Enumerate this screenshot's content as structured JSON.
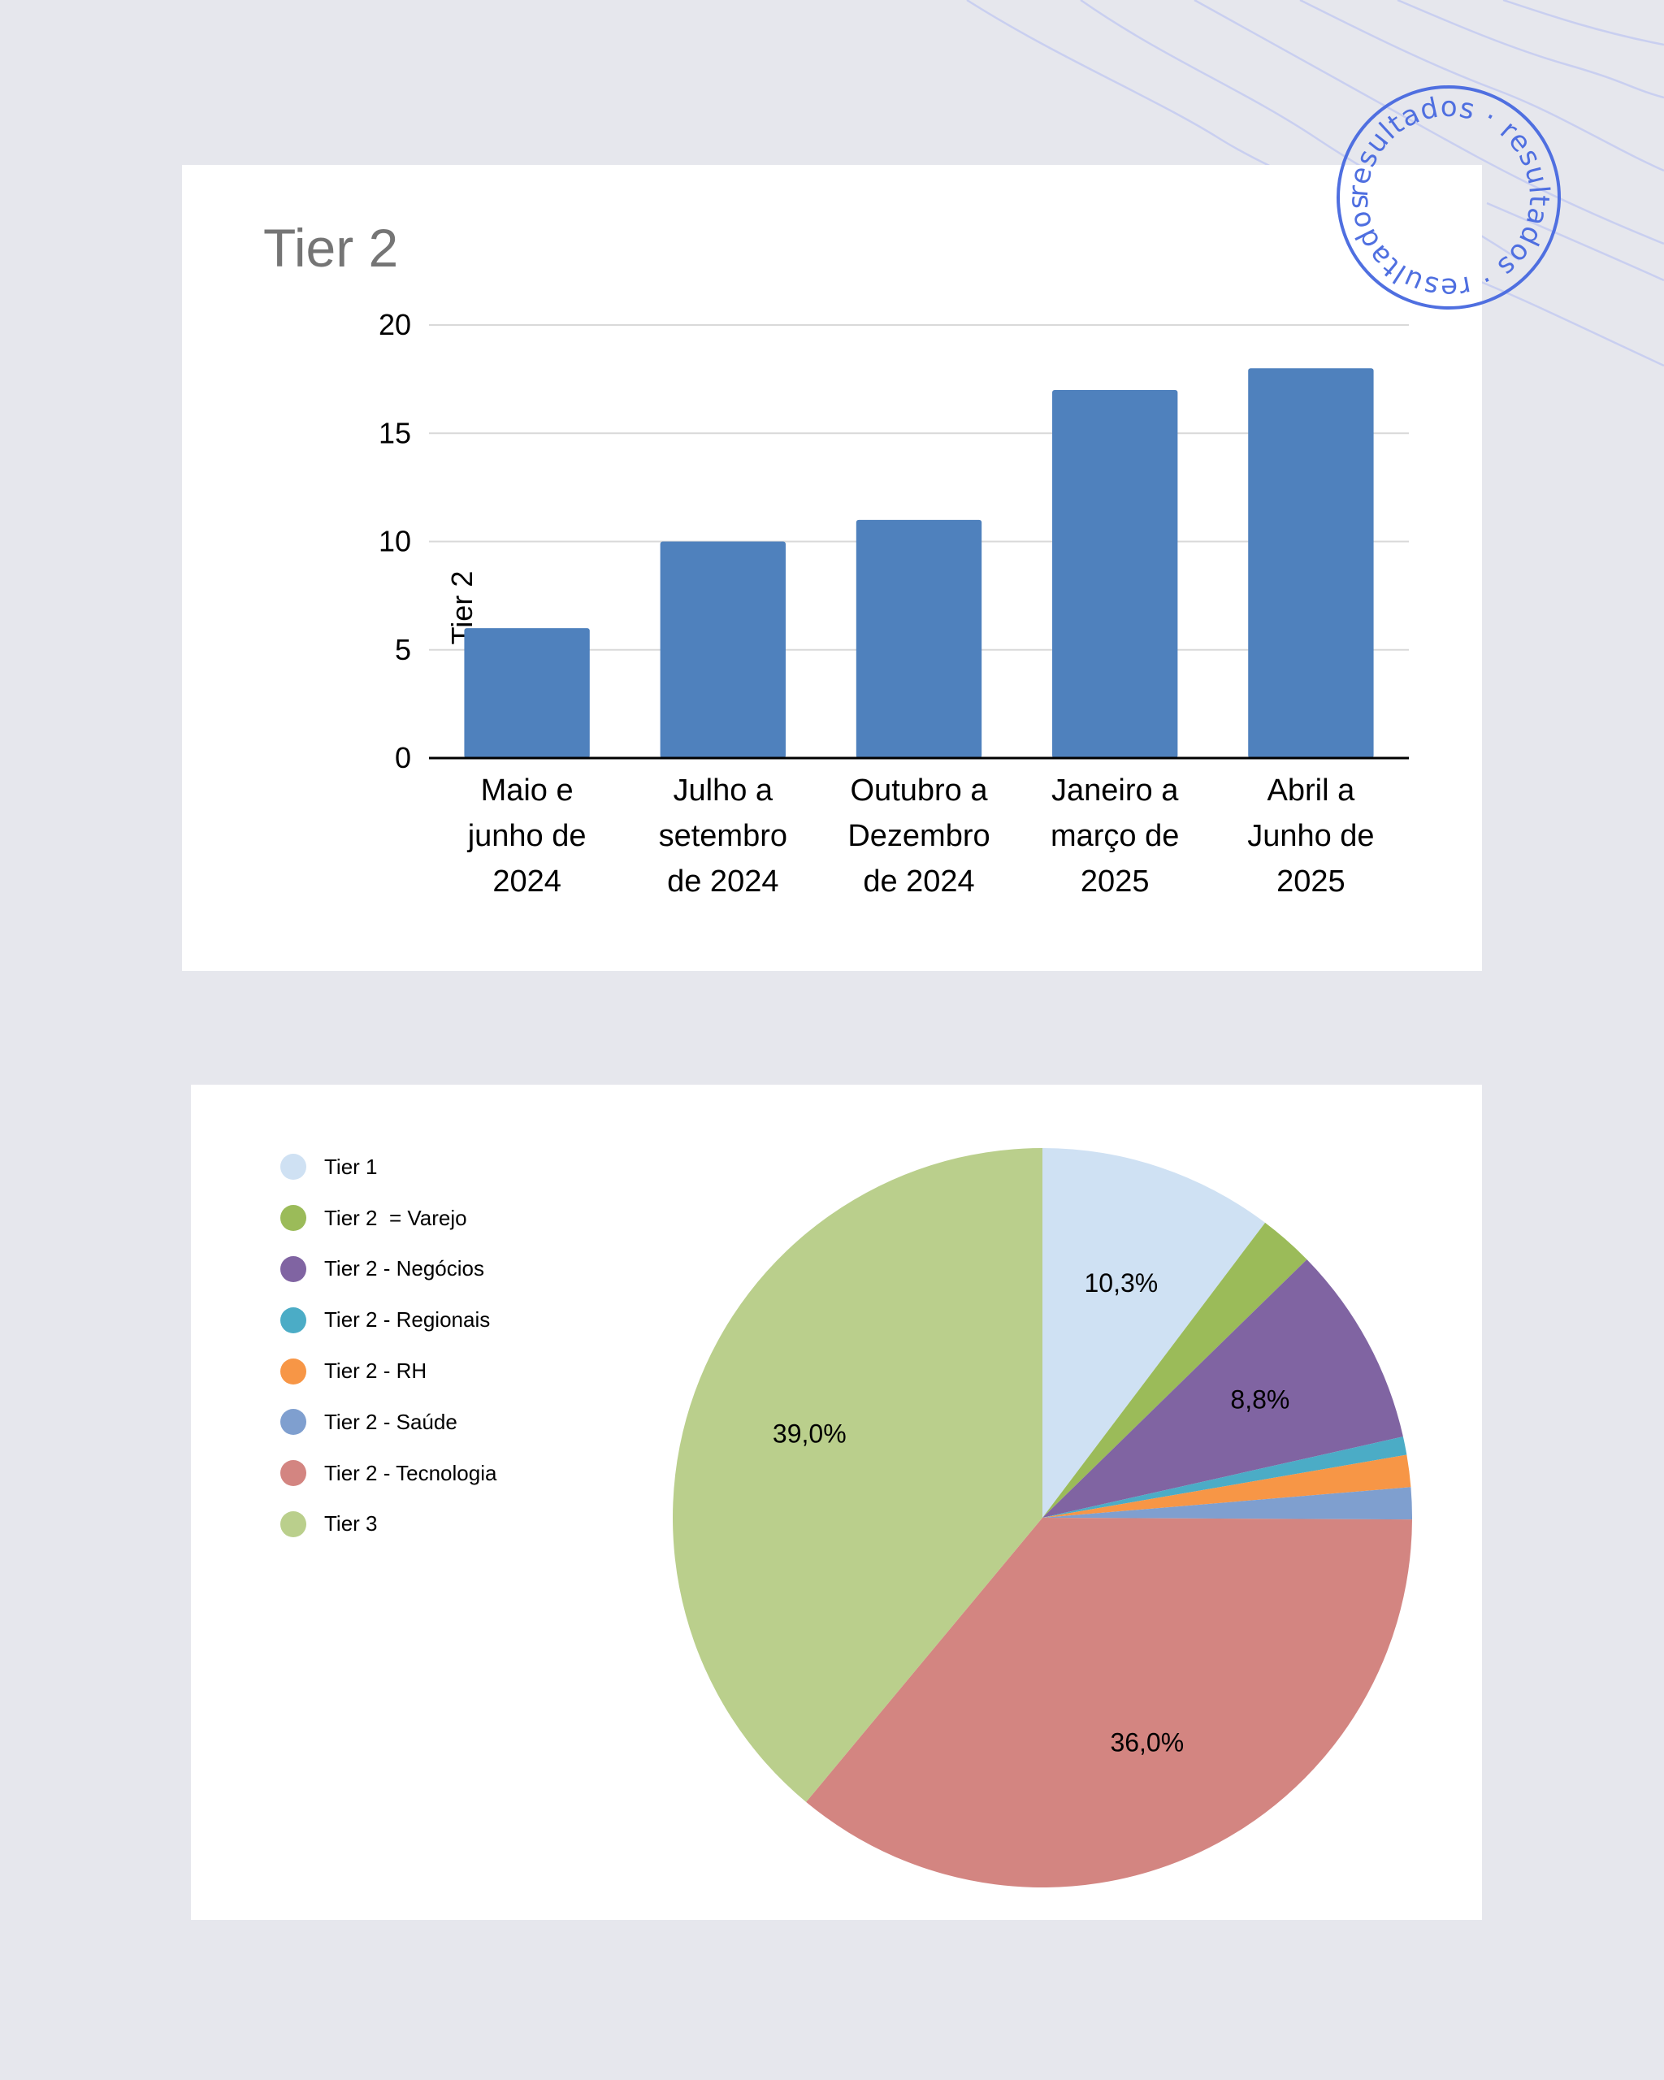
{
  "chart_data": [
    {
      "type": "bar",
      "title": "Tier 2",
      "ylabel": "Tier 2",
      "xlabel": "",
      "categories": [
        "Maio e junho de 2024",
        "Julho a setembro de 2024",
        "Outubro a Dezembro de 2024",
        "Janeiro a março de 2025",
        "Abril a Junho de 2025"
      ],
      "category_lines": [
        [
          "Maio e",
          "junho de",
          "2024"
        ],
        [
          "Julho a",
          "setembro",
          "de 2024"
        ],
        [
          "Outubro a",
          "Dezembro",
          "de 2024"
        ],
        [
          "Janeiro a",
          "março de",
          "2025"
        ],
        [
          "Abril a",
          "Junho de",
          "2025"
        ]
      ],
      "values": [
        6,
        10,
        11,
        17,
        18
      ],
      "ylim": [
        0,
        20
      ],
      "yticks": [
        "0",
        "5",
        "10",
        "15",
        "20"
      ],
      "grid": true,
      "colors": {
        "bar": "#4f81bd",
        "grid": "#d9d9d9",
        "axis": "#000000",
        "title": "#757575"
      }
    },
    {
      "type": "pie",
      "legend_position": "left",
      "slices": [
        {
          "label": "Tier 1",
          "value": 10.3,
          "data_label": "10,3%",
          "color": "#cfe1f3"
        },
        {
          "label": "Tier 2  = Varejo",
          "value": 2.4,
          "data_label": "",
          "color": "#9bbb59"
        },
        {
          "label": "Tier 2 - Negócios",
          "value": 8.8,
          "data_label": "8,8%",
          "color": "#8064a2"
        },
        {
          "label": "Tier 2 - Regionais",
          "value": 0.8,
          "data_label": "",
          "color": "#4bacc6"
        },
        {
          "label": "Tier 2 - RH",
          "value": 1.4,
          "data_label": "",
          "color": "#f79646"
        },
        {
          "label": "Tier 2 - Saúde",
          "value": 1.4,
          "data_label": "",
          "color": "#7f9fcf"
        },
        {
          "label": "Tier 2 - Tecnologia",
          "value": 36.0,
          "data_label": "36,0%",
          "color": "#d38581"
        },
        {
          "label": "Tier 3",
          "value": 39.0,
          "data_label": "39,0%",
          "color": "#bacf8c"
        }
      ]
    }
  ],
  "stamp": {
    "text": "resultados · resultados · resultados ·",
    "color": "#4f6fe0"
  }
}
